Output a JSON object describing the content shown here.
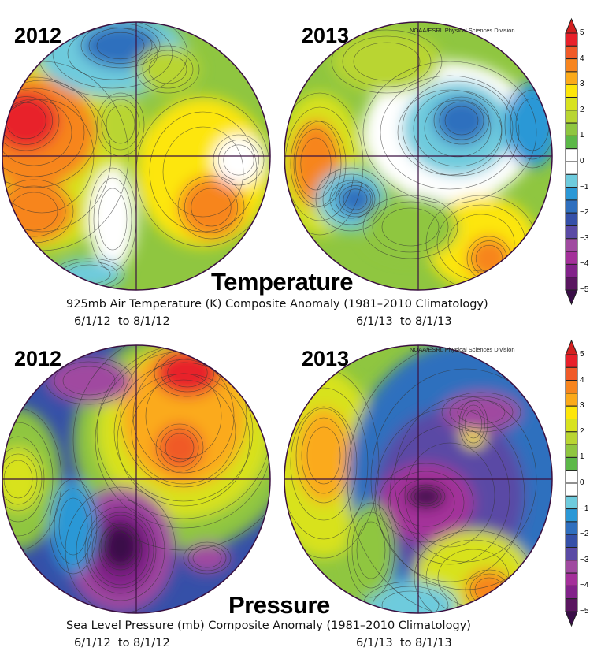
{
  "panels": [
    {
      "id": "temp-2012",
      "year": "2012",
      "variable": "temperature"
    },
    {
      "id": "temp-2013",
      "year": "2013",
      "variable": "temperature",
      "credit": "NOAA/ESRL Physical Sciences Division"
    },
    {
      "id": "slp-2012",
      "year": "2012",
      "variable": "pressure"
    },
    {
      "id": "slp-2013",
      "year": "2013",
      "variable": "pressure",
      "credit": "NOAA/ESRL Physical Sciences Division"
    }
  ],
  "temperature": {
    "heading": "Temperature",
    "subtitle": "925mb Air Temperature (K) Composite Anomaly (1981–2010 Climatology)",
    "date_left": "6/1/12  to 8/1/12",
    "date_right": "6/1/13  to 8/1/13"
  },
  "pressure": {
    "heading": "Pressure",
    "subtitle": "Sea Level Pressure (mb) Composite Anomaly (1981–2010 Climatology)",
    "date_left": "6/1/12  to 8/1/12",
    "date_right": "6/1/13  to 8/1/13"
  },
  "colorbar": {
    "labels": [
      "5",
      "4",
      "3",
      "2",
      "1",
      "0",
      "−1",
      "−2",
      "−3",
      "−4",
      "−5"
    ],
    "range": [
      -5,
      5
    ],
    "step": 0.5,
    "colors": [
      "#e8202a",
      "#f05a28",
      "#f7851f",
      "#fbaa1a",
      "#fde60a",
      "#d8e21f",
      "#b9d532",
      "#8fc640",
      "#5cb848",
      "#ffffff",
      "#ffffff",
      "#6ecbdd",
      "#2b98d6",
      "#2f6fbe",
      "#3550a8",
      "#5a4aa5",
      "#a04aa0",
      "#a4309a",
      "#82228a",
      "#5a1660"
    ],
    "over_color": "#d42020",
    "under_color": "#3a0e48"
  }
}
